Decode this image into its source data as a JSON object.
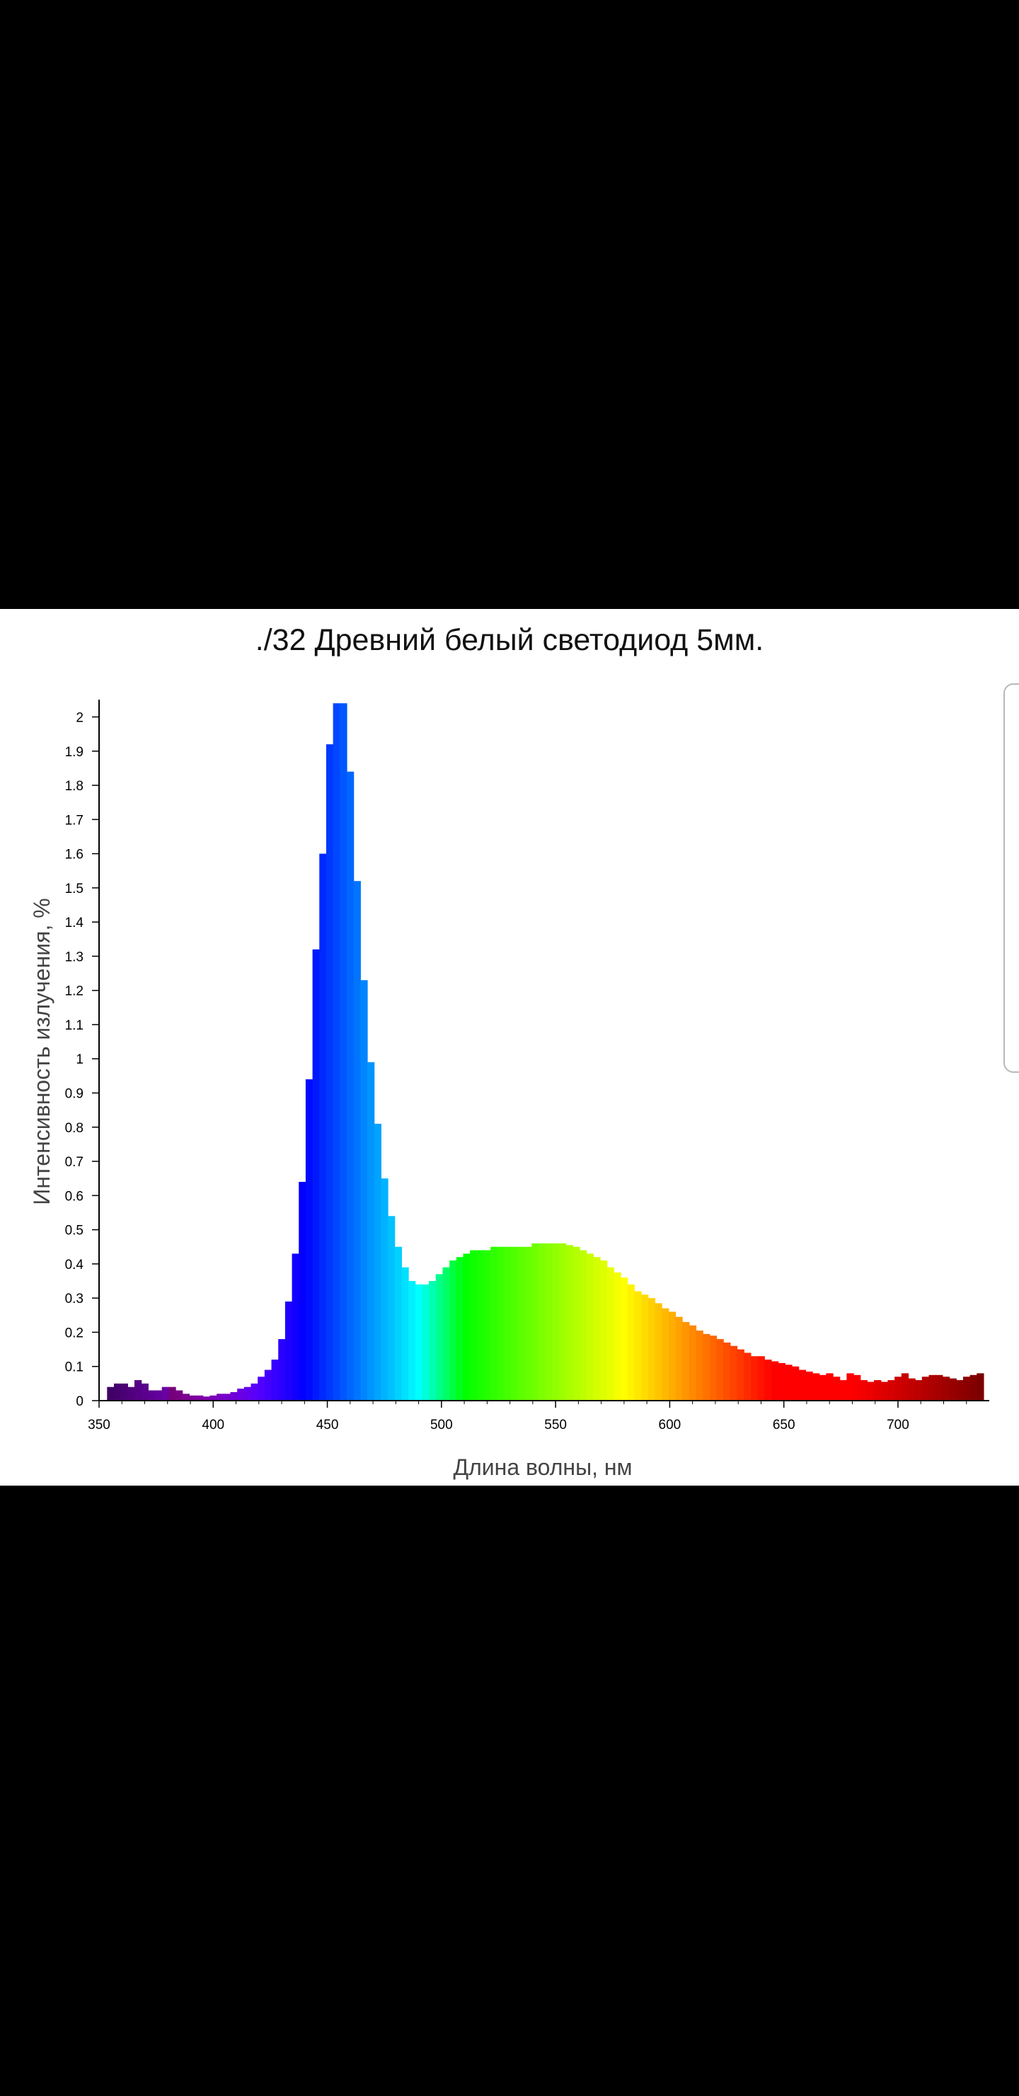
{
  "chart_data": {
    "type": "bar",
    "title": "./32 Древний белый светодиод 5мм.",
    "xlabel": "Длина волны, нм",
    "ylabel": "Интенсивность излучения, %",
    "xlim": [
      350,
      740
    ],
    "ylim": [
      0,
      2.03
    ],
    "xticks": [
      350,
      400,
      450,
      500,
      550,
      600,
      650,
      700
    ],
    "yticks": [
      0,
      0.1,
      0.2,
      0.3,
      0.4,
      0.5,
      0.6,
      0.7,
      0.8,
      0.9,
      1,
      1.1,
      1.2,
      1.3,
      1.4,
      1.5,
      1.6,
      1.7,
      1.8,
      1.9,
      2
    ],
    "ytick_labels": [
      "0",
      "0.1",
      "0.2",
      "0.3",
      "0.4",
      "0.5",
      "0.6",
      "0.7",
      "0.8",
      "0.9",
      "1",
      "1.1",
      "1.2",
      "1.3",
      "1.4",
      "1.5",
      "1.6",
      "1.7",
      "1.8",
      "1.9",
      "2"
    ],
    "bin_width_nm": 3,
    "x": [
      355,
      358,
      361,
      364,
      367,
      370,
      373,
      376,
      379,
      382,
      385,
      388,
      391,
      394,
      397,
      400,
      403,
      406,
      409,
      412,
      415,
      418,
      421,
      424,
      427,
      430,
      433,
      436,
      439,
      442,
      445,
      448,
      451,
      454,
      457,
      460,
      463,
      466,
      469,
      472,
      475,
      478,
      481,
      484,
      487,
      490,
      493,
      496,
      499,
      502,
      505,
      508,
      511,
      514,
      517,
      520,
      523,
      526,
      529,
      532,
      535,
      538,
      541,
      544,
      547,
      550,
      553,
      556,
      559,
      562,
      565,
      568,
      571,
      574,
      577,
      580,
      583,
      586,
      589,
      592,
      595,
      598,
      601,
      604,
      607,
      610,
      613,
      616,
      619,
      622,
      625,
      628,
      631,
      634,
      637,
      640,
      643,
      646,
      649,
      652,
      655,
      658,
      661,
      664,
      667,
      670,
      673,
      676,
      679,
      682,
      685,
      688,
      691,
      694,
      697,
      700,
      703,
      706,
      709,
      712,
      715,
      718,
      721,
      724,
      727,
      730,
      733,
      736
    ],
    "values": [
      0.04,
      0.05,
      0.05,
      0.04,
      0.06,
      0.05,
      0.03,
      0.03,
      0.04,
      0.04,
      0.03,
      0.02,
      0.015,
      0.015,
      0.012,
      0.015,
      0.02,
      0.02,
      0.025,
      0.035,
      0.04,
      0.05,
      0.07,
      0.09,
      0.12,
      0.18,
      0.29,
      0.43,
      0.64,
      0.94,
      1.32,
      1.6,
      1.92,
      2.04,
      2.04,
      1.84,
      1.52,
      1.23,
      0.99,
      0.81,
      0.65,
      0.54,
      0.45,
      0.39,
      0.35,
      0.34,
      0.34,
      0.35,
      0.37,
      0.39,
      0.41,
      0.42,
      0.43,
      0.44,
      0.44,
      0.44,
      0.45,
      0.45,
      0.45,
      0.45,
      0.45,
      0.45,
      0.46,
      0.46,
      0.46,
      0.46,
      0.46,
      0.455,
      0.45,
      0.44,
      0.43,
      0.42,
      0.41,
      0.39,
      0.375,
      0.36,
      0.34,
      0.32,
      0.31,
      0.3,
      0.285,
      0.27,
      0.26,
      0.245,
      0.23,
      0.22,
      0.205,
      0.195,
      0.19,
      0.18,
      0.17,
      0.16,
      0.15,
      0.14,
      0.13,
      0.13,
      0.12,
      0.115,
      0.11,
      0.105,
      0.1,
      0.09,
      0.085,
      0.08,
      0.075,
      0.08,
      0.07,
      0.06,
      0.08,
      0.075,
      0.06,
      0.055,
      0.06,
      0.055,
      0.06,
      0.07,
      0.08,
      0.065,
      0.06,
      0.07,
      0.075,
      0.075,
      0.07,
      0.065,
      0.06,
      0.07,
      0.075,
      0.08
    ],
    "grid": false,
    "legend": "none",
    "colors": {
      "axis": "#000000",
      "tick_text": "#000000",
      "label_text": "#444444",
      "spectrum_start": "#2a0050",
      "spectrum_end": "#7a0000"
    }
  },
  "ui": {
    "scroll_tab_color": "#b9b9b9"
  }
}
